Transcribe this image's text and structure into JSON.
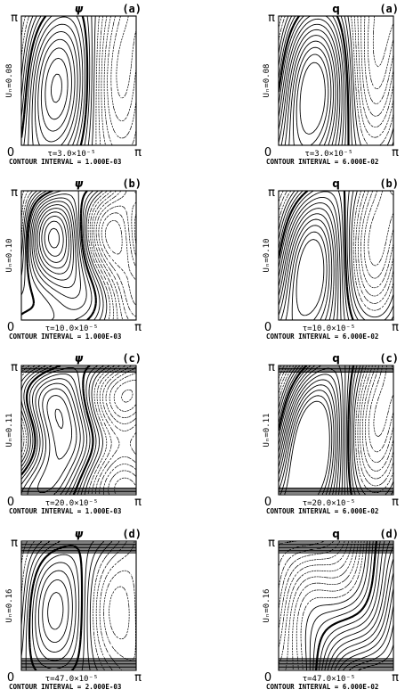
{
  "figure": {
    "columns": [
      {
        "field": "ψ"
      },
      {
        "field": "q"
      }
    ],
    "rows": [
      {
        "label": "(a)",
        "ylabel": "Uₙ=0.08",
        "tau": "τ=3.0×10⁻⁵",
        "intervals": [
          "CONTOUR INTERVAL = 1.000E-03",
          "CONTOUR INTERVAL = 6.000E-02"
        ]
      },
      {
        "label": "(b)",
        "ylabel": "Uₙ=0.10",
        "tau": "τ=10.0×10⁻⁵",
        "intervals": [
          "CONTOUR INTERVAL = 1.000E-03",
          "CONTOUR INTERVAL = 6.000E-02"
        ]
      },
      {
        "label": "(c)",
        "ylabel": "Uₙ=0.11",
        "tau": "τ=20.0×10⁻⁵",
        "intervals": [
          "CONTOUR INTERVAL = 1.000E-03",
          "CONTOUR INTERVAL = 6.000E-02"
        ]
      },
      {
        "label": "(d)",
        "ylabel": "Uₙ=0.16",
        "tau": "τ=47.0×10⁻⁵",
        "intervals": [
          "CONTOUR INTERVAL = 2.000E-03",
          "CONTOUR INTERVAL = 6.000E-02"
        ]
      }
    ],
    "axis_labels": {
      "y_top": "π",
      "origin": "0",
      "x_right": "π"
    }
  },
  "chart_data": {
    "type": "contour",
    "panels": [
      {
        "row": "a",
        "field": "ψ",
        "U": 0.08,
        "tau_e5": 3.0,
        "contour_interval": 0.001,
        "xlim": [
          0,
          3.14159
        ],
        "ylim": [
          0,
          3.14159
        ]
      },
      {
        "row": "a",
        "field": "q",
        "U": 0.08,
        "tau_e5": 3.0,
        "contour_interval": 0.06,
        "xlim": [
          0,
          3.14159
        ],
        "ylim": [
          0,
          3.14159
        ]
      },
      {
        "row": "b",
        "field": "ψ",
        "U": 0.1,
        "tau_e5": 10.0,
        "contour_interval": 0.001,
        "xlim": [
          0,
          3.14159
        ],
        "ylim": [
          0,
          3.14159
        ]
      },
      {
        "row": "b",
        "field": "q",
        "U": 0.1,
        "tau_e5": 10.0,
        "contour_interval": 0.06,
        "xlim": [
          0,
          3.14159
        ],
        "ylim": [
          0,
          3.14159
        ]
      },
      {
        "row": "c",
        "field": "ψ",
        "U": 0.11,
        "tau_e5": 20.0,
        "contour_interval": 0.001,
        "xlim": [
          0,
          3.14159
        ],
        "ylim": [
          0,
          3.14159
        ]
      },
      {
        "row": "c",
        "field": "q",
        "U": 0.11,
        "tau_e5": 20.0,
        "contour_interval": 0.06,
        "xlim": [
          0,
          3.14159
        ],
        "ylim": [
          0,
          3.14159
        ]
      },
      {
        "row": "d",
        "field": "ψ",
        "U": 0.16,
        "tau_e5": 47.0,
        "contour_interval": 0.002,
        "xlim": [
          0,
          3.14159
        ],
        "ylim": [
          0,
          3.14159
        ]
      },
      {
        "row": "d",
        "field": "q",
        "U": 0.16,
        "tau_e5": 47.0,
        "contour_interval": 0.06,
        "xlim": [
          0,
          3.14159
        ],
        "ylim": [
          0,
          3.14159
        ]
      }
    ]
  }
}
